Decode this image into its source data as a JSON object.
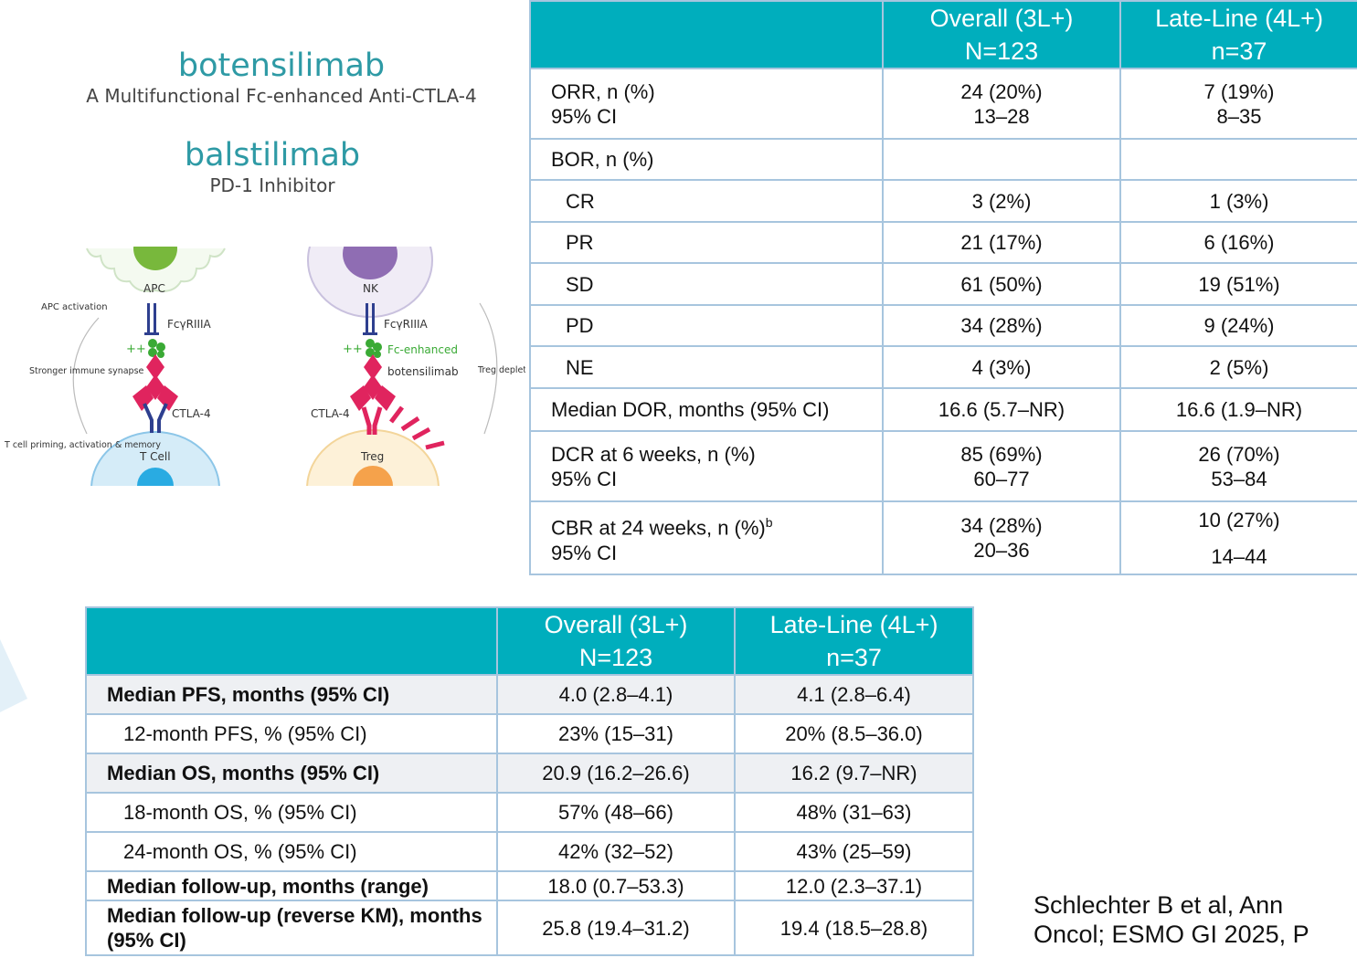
{
  "drugs": [
    {
      "name": "botensilimab",
      "description": "A Multifunctional Fc-enhanced Anti-CTLA-4"
    },
    {
      "name": "balstilimab",
      "description": "PD-1 Inhibitor"
    }
  ],
  "diagram": {
    "left_panel": {
      "apc": "APC",
      "apc_activation": "APC activation",
      "fc_receptor": "FcγRIIIA",
      "synapse": "Stronger immune synapse",
      "ctla4": "CTLA-4",
      "tcell": "T Cell",
      "priming": "T cell priming, activation & memory"
    },
    "right_panel": {
      "nk": "NK",
      "fc_receptor": "FcγRIIIA",
      "fc_enhanced": "Fc-enhanced",
      "drug": "botensilimab",
      "ctla4": "CTLA-4",
      "treg": "Treg",
      "treg_depletion": "Treg depletion"
    }
  },
  "response_table": {
    "headers": [
      {
        "line1": "",
        "line2": ""
      },
      {
        "line1": "Overall (3L+)",
        "line2": "N=123"
      },
      {
        "line1": "Late-Line (4L+)",
        "line2": "n=37"
      }
    ],
    "rows": [
      {
        "label": "ORR, n (%)",
        "sublabel": "95% CI",
        "overall": "24 (20%)",
        "overall_ci": "13–28",
        "late": "7 (19%)",
        "late_ci": "8–35"
      },
      {
        "label": "BOR, n (%)",
        "overall": "",
        "late": ""
      },
      {
        "label": "CR",
        "overall": "3 (2%)",
        "late": "1 (3%)"
      },
      {
        "label": "PR",
        "overall": "21 (17%)",
        "late": "6 (16%)"
      },
      {
        "label": "SD",
        "overall": "61 (50%)",
        "late": "19 (51%)"
      },
      {
        "label": "PD",
        "overall": "34 (28%)",
        "late": "9 (24%)"
      },
      {
        "label": "NE",
        "overall": "4 (3%)",
        "late": "2 (5%)"
      },
      {
        "label": "Median DOR, months (95% CI)",
        "overall": "16.6 (5.7–NR)",
        "late": "16.6 (1.9–NR)"
      },
      {
        "label": "DCR at 6 weeks, n (%)",
        "sublabel": "95% CI",
        "overall": "85 (69%)",
        "overall_ci": "60–77",
        "late": "26 (70%)",
        "late_ci": "53–84"
      },
      {
        "label": "CBR at 24 weeks, n (%)",
        "label_sup": "b",
        "sublabel": "95% CI",
        "overall": "34 (28%)",
        "overall_ci": "20–36",
        "late": "10 (27%)",
        "late_ci": "14–44"
      }
    ]
  },
  "survival_table": {
    "headers": [
      {
        "line1": "",
        "line2": ""
      },
      {
        "line1": "Overall (3L+)",
        "line2": "N=123"
      },
      {
        "line1": "Late-Line (4L+)",
        "line2": "n=37"
      }
    ],
    "rows": [
      {
        "label": "Median PFS, months (95% CI)",
        "overall": "4.0 (2.8–4.1)",
        "late": "4.1 (2.8–6.4)"
      },
      {
        "label": "12-month PFS, % (95% CI)",
        "overall": "23% (15–31)",
        "late": "20% (8.5–36.0)"
      },
      {
        "label": "Median OS, months (95% CI)",
        "overall": "20.9 (16.2–26.6)",
        "late": "16.2 (9.7–NR)"
      },
      {
        "label": "18-month OS, % (95% CI)",
        "overall": "57% (48–66)",
        "late": "48% (31–63)"
      },
      {
        "label": "24-month OS, % (95% CI)",
        "overall": "42% (32–52)",
        "late": "43% (25–59)"
      },
      {
        "label": "Median follow-up, months (range)",
        "overall": "18.0 (0.7–53.3)",
        "late": "12.0 (2.3–37.1)"
      },
      {
        "label": "Median follow-up (reverse KM), months (95% CI)",
        "overall": "25.8 (19.4–31.2)",
        "late": "19.4 (18.5–28.8)"
      }
    ]
  },
  "citation": "Schlechter B et al, Ann Oncol; ESMO GI 2025, P",
  "colors": {
    "header_teal": "#00aebd",
    "title_teal": "#2e9aa5",
    "border": "#a7c5de",
    "pink": "#e0245e",
    "navy": "#2e3f8f",
    "green": "#3aaa35"
  }
}
